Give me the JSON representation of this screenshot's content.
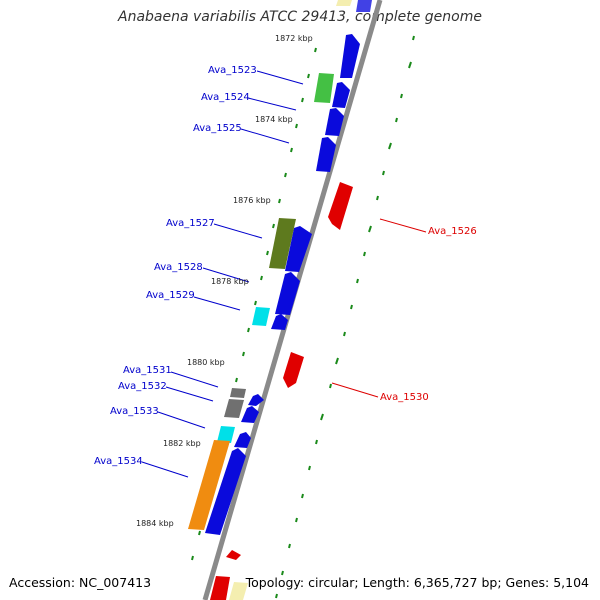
{
  "title": "Anabaena variabilis ATCC 29413, complete genome",
  "accession": "Accession: NC_007413",
  "summary": "Topology: circular; Length: 6,365,727 bp; Genes: 5,104",
  "ticks": [
    "1872 kbp",
    "1874 kbp",
    "1876 kbp",
    "1878 kbp",
    "1880 kbp",
    "1882 kbp",
    "1884 kbp"
  ],
  "genes_left": [
    "Ava_1523",
    "Ava_1524",
    "Ava_1525",
    "Ava_1527",
    "Ava_1528",
    "Ava_1529",
    "Ava_1531",
    "Ava_1532",
    "Ava_1533",
    "Ava_1534"
  ],
  "genes_right": [
    "Ava_1526",
    "Ava_1530"
  ],
  "colors": {
    "forward_label": "#0000cc",
    "reverse_label": "#dd0000",
    "gene_blue": "#0a0adc",
    "gene_red": "#e00000",
    "gene_green": "#44c044",
    "gene_olive": "#5e7a1e",
    "gene_cyan": "#00e0e8",
    "gene_gray": "#707070",
    "gene_orange": "#f08c10",
    "gene_cream": "#f4eeb0",
    "backbone": "#888888",
    "tick_green": "#1a8a1a"
  }
}
